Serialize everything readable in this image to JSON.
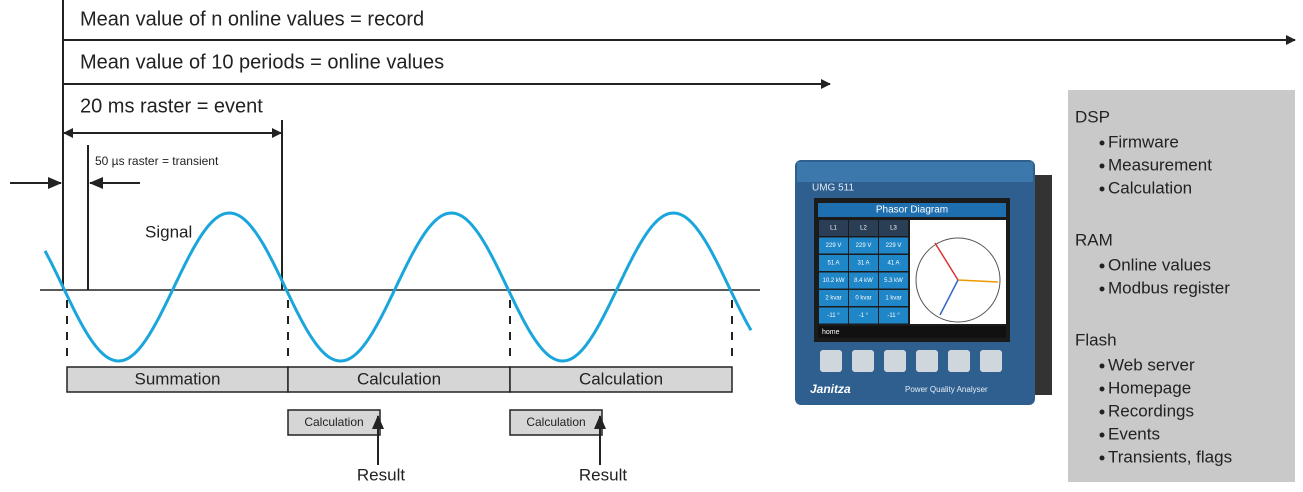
{
  "timeline": [
    {
      "text": "Mean value of n online values =  record"
    },
    {
      "text": "Mean value of 10 periods =  online values"
    },
    {
      "text": "20 ms raster = event"
    }
  ],
  "transient": "50 µs raster = transient",
  "signal_label": "Signal",
  "phases": [
    "Summation",
    "Calculation",
    "Calculation"
  ],
  "calculations": [
    {
      "box": "Calculation",
      "result": "Result"
    },
    {
      "box": "Calculation",
      "result": "Result"
    }
  ],
  "device": {
    "model": "UMG 511",
    "screen_title": "Phasor Diagram",
    "table": [
      [
        "L1",
        "L2",
        "L3"
      ],
      [
        "229 V",
        "229 V",
        "229 V"
      ],
      [
        "51 A",
        "31 A",
        "41 A"
      ],
      [
        "10.2 kW",
        "8.4 kW",
        "5.3 kW"
      ],
      [
        "2 kvar",
        "0 kvar",
        "1 kvar"
      ],
      [
        "-11 °",
        "-1 °",
        "-11 °"
      ]
    ],
    "home": "home",
    "brand": "Janitza",
    "tagline": "Power Quality Analyser"
  },
  "memory": [
    {
      "title": "DSP",
      "items": [
        "Firmware",
        "Measurement",
        "Calculation"
      ]
    },
    {
      "title": "RAM",
      "items": [
        "Online values",
        "Modbus register"
      ]
    },
    {
      "title": "Flash",
      "items": [
        "Web server",
        "Homepage",
        "Recordings",
        "Events",
        "Transients, flags"
      ]
    }
  ]
}
